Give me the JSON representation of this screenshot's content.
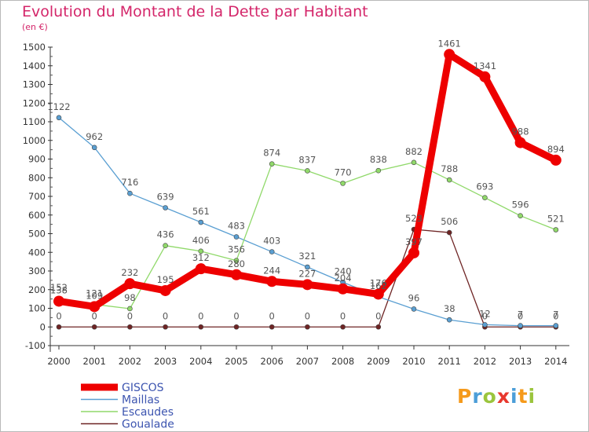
{
  "chart_data": {
    "type": "line",
    "title": "Evolution du Montant de la Dette par Habitant",
    "subtitle": "(en €)",
    "x": [
      "2000",
      "2001",
      "2002",
      "2003",
      "2004",
      "2005",
      "2006",
      "2007",
      "2008",
      "2009",
      "2010",
      "2011",
      "2012",
      "2013",
      "2014"
    ],
    "ylim": [
      -100,
      1500
    ],
    "yticks": [
      -100,
      0,
      100,
      200,
      300,
      400,
      500,
      600,
      700,
      800,
      900,
      1000,
      1100,
      1200,
      1300,
      1400,
      1500
    ],
    "grid": false,
    "legend_position": "bottom-left",
    "series": [
      {
        "name": "Goualade",
        "color": "#6e2424",
        "width": 1.3,
        "marker": 3,
        "values": [
          0,
          0,
          0,
          0,
          0,
          0,
          0,
          0,
          0,
          0,
          523,
          506,
          0,
          0,
          0
        ]
      },
      {
        "name": "Maillas",
        "color": "#5a9fd2",
        "width": 1.3,
        "marker": 3,
        "values": [
          1122,
          962,
          716,
          639,
          561,
          483,
          403,
          321,
          240,
          162,
          96,
          38,
          12,
          7,
          7
        ]
      },
      {
        "name": "Escaudes",
        "color": "#90d96a",
        "width": 1.3,
        "marker": 3,
        "values": [
          152,
          121,
          98,
          436,
          406,
          356,
          874,
          837,
          770,
          838,
          882,
          788,
          693,
          596,
          521
        ]
      },
      {
        "name": "GISCOS",
        "color": "#ee0000",
        "width": 9,
        "marker": 7,
        "values": [
          138,
          109,
          232,
          195,
          312,
          280,
          244,
          227,
          204,
          176,
          397,
          1461,
          1341,
          988,
          894
        ]
      }
    ],
    "legend": [
      "GISCOS",
      "Maillas",
      "Escaudes",
      "Goualade"
    ],
    "logo_text": "Proxiti"
  }
}
